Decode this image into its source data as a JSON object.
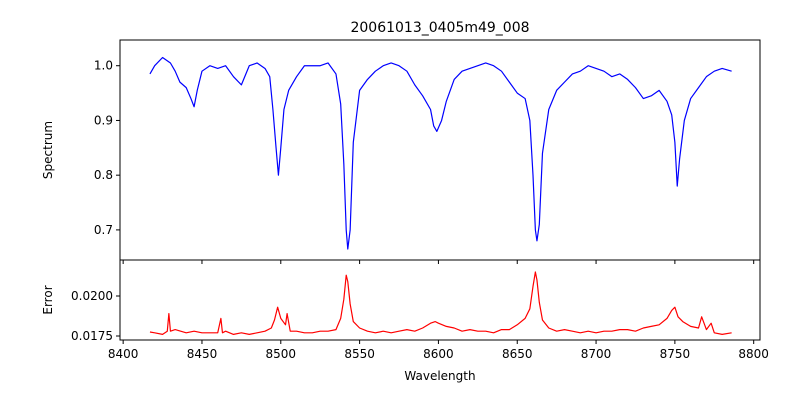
{
  "chart_data": [
    {
      "type": "line",
      "title": "20061013_0405m49_008",
      "xlabel": "",
      "ylabel": "Spectrum",
      "xlim": [
        8398,
        8804
      ],
      "ylim": [
        0.645,
        1.047
      ],
      "xticks": [
        8400,
        8450,
        8500,
        8550,
        8600,
        8650,
        8700,
        8750,
        8800
      ],
      "yticks": [
        0.7,
        0.8,
        0.9,
        1.0
      ],
      "ytick_labels": [
        "0.7",
        "0.8",
        "0.9",
        "1.0"
      ],
      "grid": false,
      "series": [
        {
          "color": "#0000ff",
          "x": [
            8417,
            8420,
            8425,
            8430,
            8433,
            8436,
            8440,
            8443,
            8445,
            8447,
            8450,
            8455,
            8460,
            8465,
            8470,
            8475,
            8480,
            8485,
            8490,
            8493,
            8495,
            8497,
            8498.5,
            8500,
            8502,
            8505,
            8510,
            8515,
            8520,
            8525,
            8530,
            8535,
            8538,
            8540,
            8541.5,
            8542.5,
            8544,
            8546,
            8550,
            8555,
            8560,
            8565,
            8570,
            8575,
            8580,
            8585,
            8590,
            8595,
            8597,
            8599,
            8602,
            8605,
            8610,
            8615,
            8620,
            8625,
            8630,
            8635,
            8640,
            8645,
            8650,
            8655,
            8658,
            8660,
            8661.5,
            8662.5,
            8664,
            8666,
            8670,
            8675,
            8680,
            8685,
            8690,
            8695,
            8700,
            8705,
            8710,
            8715,
            8720,
            8725,
            8730,
            8735,
            8740,
            8745,
            8748,
            8750,
            8751.5,
            8753,
            8756,
            8760,
            8765,
            8770,
            8775,
            8780,
            8786
          ],
          "y": [
            0.985,
            1.0,
            1.015,
            1.005,
            0.99,
            0.97,
            0.96,
            0.94,
            0.925,
            0.955,
            0.99,
            1.0,
            0.995,
            1.0,
            0.98,
            0.965,
            1.0,
            1.005,
            0.995,
            0.98,
            0.92,
            0.85,
            0.8,
            0.85,
            0.92,
            0.955,
            0.98,
            1.0,
            1.0,
            1.0,
            1.005,
            0.985,
            0.93,
            0.82,
            0.7,
            0.665,
            0.7,
            0.86,
            0.955,
            0.975,
            0.99,
            1.0,
            1.005,
            1.0,
            0.99,
            0.965,
            0.945,
            0.92,
            0.89,
            0.88,
            0.9,
            0.935,
            0.975,
            0.99,
            0.995,
            1.0,
            1.005,
            1.0,
            0.99,
            0.97,
            0.95,
            0.94,
            0.9,
            0.8,
            0.7,
            0.68,
            0.71,
            0.84,
            0.92,
            0.955,
            0.97,
            0.985,
            0.99,
            1.0,
            0.995,
            0.99,
            0.98,
            0.985,
            0.975,
            0.96,
            0.94,
            0.945,
            0.955,
            0.935,
            0.91,
            0.86,
            0.78,
            0.83,
            0.9,
            0.94,
            0.96,
            0.98,
            0.99,
            0.995,
            0.99
          ]
        }
      ]
    },
    {
      "type": "line",
      "title": "",
      "xlabel": "Wavelength",
      "ylabel": "Error",
      "xlim": [
        8398,
        8804
      ],
      "ylim": [
        0.01725,
        0.02225
      ],
      "xticks": [
        8400,
        8450,
        8500,
        8550,
        8600,
        8650,
        8700,
        8750,
        8800
      ],
      "xtick_labels": [
        "8400",
        "8450",
        "8500",
        "8550",
        "8600",
        "8650",
        "8700",
        "8750",
        "8800"
      ],
      "yticks": [
        0.0175,
        0.02
      ],
      "ytick_labels": [
        "0.0175",
        "0.0200"
      ],
      "grid": false,
      "series": [
        {
          "color": "#ff0000",
          "x": [
            8417,
            8420,
            8425,
            8428,
            8429,
            8430,
            8433,
            8440,
            8445,
            8450,
            8455,
            8460,
            8462,
            8463,
            8465,
            8470,
            8475,
            8480,
            8485,
            8490,
            8494,
            8496,
            8498,
            8500,
            8503,
            8504,
            8506,
            8510,
            8515,
            8520,
            8525,
            8530,
            8535,
            8538,
            8540,
            8541.5,
            8542.5,
            8544,
            8546,
            8550,
            8555,
            8560,
            8565,
            8570,
            8575,
            8580,
            8585,
            8590,
            8595,
            8598,
            8600,
            8605,
            8610,
            8615,
            8620,
            8625,
            8630,
            8635,
            8640,
            8645,
            8650,
            8655,
            8658,
            8660,
            8661.5,
            8662.5,
            8664,
            8666,
            8670,
            8675,
            8680,
            8685,
            8690,
            8695,
            8700,
            8705,
            8710,
            8715,
            8720,
            8725,
            8730,
            8735,
            8740,
            8745,
            8748,
            8750,
            8752,
            8755,
            8760,
            8765,
            8767,
            8770,
            8773,
            8775,
            8780,
            8786
          ],
          "y": [
            0.01775,
            0.0177,
            0.0176,
            0.0178,
            0.0189,
            0.0178,
            0.0179,
            0.0177,
            0.0178,
            0.0177,
            0.0177,
            0.0177,
            0.0186,
            0.0177,
            0.0178,
            0.0176,
            0.0177,
            0.0176,
            0.0177,
            0.0178,
            0.018,
            0.0185,
            0.0193,
            0.0186,
            0.0182,
            0.0189,
            0.0178,
            0.0178,
            0.0177,
            0.0177,
            0.0178,
            0.0178,
            0.0179,
            0.0186,
            0.0198,
            0.0213,
            0.0209,
            0.0195,
            0.0184,
            0.018,
            0.0178,
            0.0177,
            0.0178,
            0.0177,
            0.0178,
            0.0179,
            0.0178,
            0.018,
            0.0183,
            0.0184,
            0.0183,
            0.0181,
            0.018,
            0.0178,
            0.0179,
            0.0178,
            0.0178,
            0.0177,
            0.0179,
            0.0179,
            0.0182,
            0.0186,
            0.0192,
            0.0206,
            0.0215,
            0.021,
            0.0196,
            0.0185,
            0.018,
            0.0178,
            0.0179,
            0.0178,
            0.0177,
            0.0178,
            0.0177,
            0.0178,
            0.0178,
            0.0179,
            0.0179,
            0.0178,
            0.018,
            0.0181,
            0.0182,
            0.0186,
            0.0191,
            0.0193,
            0.0187,
            0.0184,
            0.0181,
            0.018,
            0.0187,
            0.0179,
            0.0183,
            0.0177,
            0.0176,
            0.0177
          ]
        }
      ]
    }
  ]
}
